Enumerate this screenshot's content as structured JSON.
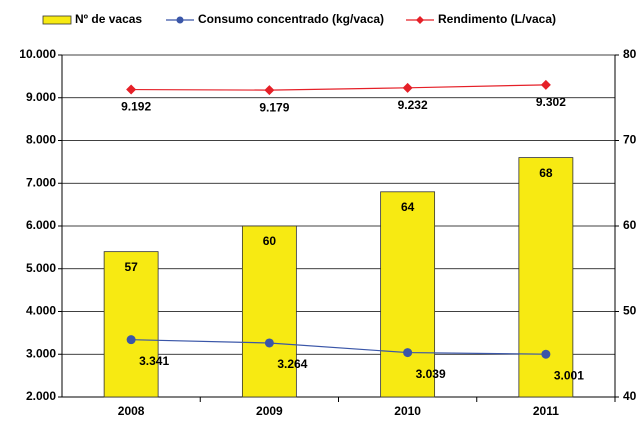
{
  "chart_data": {
    "type": "bar",
    "categories": [
      "2008",
      "2009",
      "2010",
      "2011"
    ],
    "series": [
      {
        "name": "Nº de vacas",
        "type": "bar",
        "axis": "y2",
        "color": "#f7ea12",
        "values": [
          57,
          60,
          64,
          68
        ]
      },
      {
        "name": "Consumo concentrado (kg/vaca)",
        "type": "line",
        "color": "#3a56a8",
        "values": [
          3341,
          3264,
          3039,
          3001
        ],
        "value_labels": [
          "3.341",
          "3.264",
          "3.039",
          "3.001"
        ]
      },
      {
        "name": "Rendimento (L/vaca)",
        "type": "line",
        "color": "#e52028",
        "values": [
          9192,
          9179,
          9232,
          9302
        ],
        "value_labels": [
          "9.192",
          "9.179",
          "9.232",
          "9.302"
        ]
      }
    ],
    "ylim": [
      2000,
      10000
    ],
    "yticks": [
      {
        "value": 2000,
        "label": "2.000"
      },
      {
        "value": 3000,
        "label": "3.000"
      },
      {
        "value": 4000,
        "label": "4.000"
      },
      {
        "value": 5000,
        "label": "5.000"
      },
      {
        "value": 6000,
        "label": "6.000"
      },
      {
        "value": 7000,
        "label": "7.000"
      },
      {
        "value": 8000,
        "label": "8.000"
      },
      {
        "value": 9000,
        "label": "9.000"
      },
      {
        "value": 10000,
        "label": "10.000"
      }
    ],
    "y2lim": [
      40,
      80
    ],
    "y2ticks": [
      40,
      50,
      60,
      70,
      80
    ],
    "grid": true,
    "legend": "top"
  }
}
